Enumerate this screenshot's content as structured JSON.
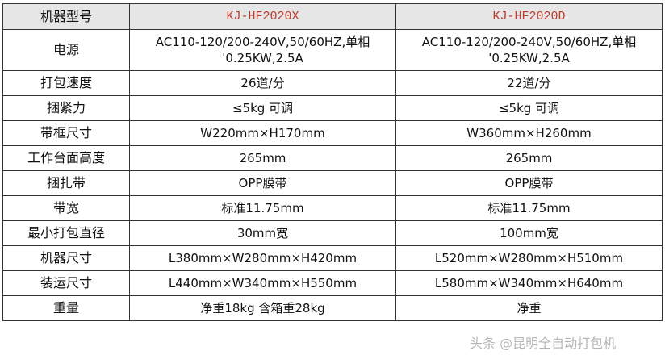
{
  "header": {
    "label": "机器型号",
    "models": [
      "KJ-HF2020X",
      "KJ-HF2020D"
    ],
    "model_color": "#c0392b"
  },
  "rows": [
    {
      "label": "电源",
      "values": [
        "AC110-120/200-240V,50/60HZ,单相 '0.25KW,2.5A",
        "AC110-120/200-240V,50/60HZ,单相 '0.25KW,2.5A"
      ]
    },
    {
      "label": "打包速度",
      "values": [
        "26道/分",
        "22道/分"
      ]
    },
    {
      "label": "捆紧力",
      "values": [
        "≤5kg  可调",
        "≤5kg  可调"
      ]
    },
    {
      "label": "带框尺寸",
      "values": [
        "W220mm×H170mm",
        "W360mm×H260mm"
      ]
    },
    {
      "label": "工作台面高度",
      "values": [
        "265mm",
        "265mm"
      ]
    },
    {
      "label": "捆扎带",
      "values": [
        "OPP膜带",
        "OPP膜带"
      ]
    },
    {
      "label": "带宽",
      "values": [
        "标准11.75mm",
        "标准11.75mm"
      ]
    },
    {
      "label": "最小打包直径",
      "values": [
        "30mm宽",
        "100mm宽"
      ]
    },
    {
      "label": "机器尺寸",
      "values": [
        "L380mm×W280mm×H420mm",
        "L520mm×W280mm×H510mm"
      ]
    },
    {
      "label": "装运尺寸",
      "values": [
        "L440mm×W340mm×H550mm",
        "L580mm×W340mm×H640mm"
      ]
    },
    {
      "label": "重量",
      "values": [
        "净重18kg    含箱重28kg",
        "净重"
      ]
    }
  ],
  "watermark": "头条 @昆明全自动打包机"
}
